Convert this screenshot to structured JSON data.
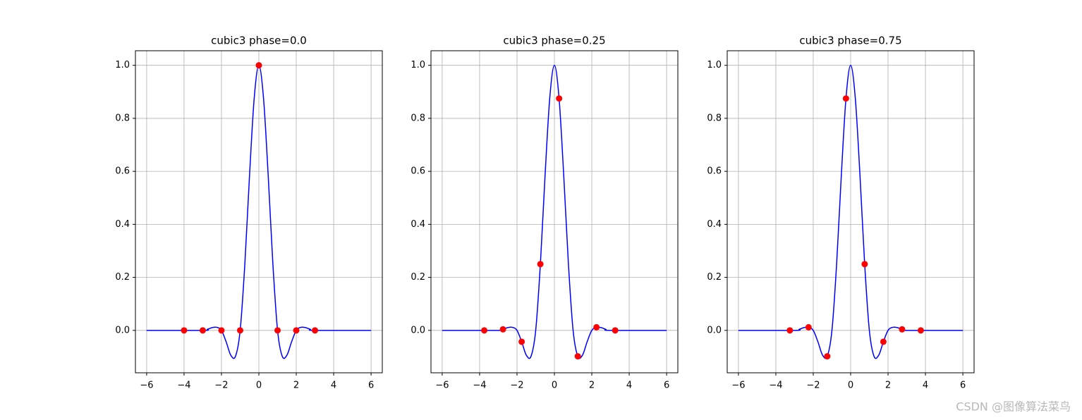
{
  "chart_data": [
    {
      "type": "line",
      "title": "cubic3 phase=0.0",
      "xlim": [
        -6.6,
        6.6
      ],
      "ylim": [
        -0.16,
        1.055
      ],
      "xticks": [
        {
          "value": -6,
          "label": "−6"
        },
        {
          "value": -4,
          "label": "−4"
        },
        {
          "value": -2,
          "label": "−2"
        },
        0,
        2,
        4,
        6
      ],
      "yticks": [
        {
          "value": 0,
          "label": "0.0"
        },
        0.2,
        0.4,
        0.6,
        0.8,
        {
          "value": 1,
          "label": "1.0"
        }
      ],
      "grid": true,
      "series": [
        {
          "type": "line",
          "color": "#0000ff",
          "x": [
            -6,
            -3,
            -2.75,
            -2.5,
            -2.25,
            -2,
            -1.75,
            -1.5,
            -1.25,
            -1,
            -0.75,
            -0.5,
            -0.25,
            0,
            0.25,
            0.5,
            0.75,
            1,
            1.25,
            1.5,
            1.75,
            2,
            2.25,
            2.5,
            2.75,
            3,
            6
          ],
          "values": [
            0,
            0,
            0.0039,
            0.0104,
            0.0117,
            0,
            -0.043,
            -0.0938,
            -0.0977,
            0,
            0.25,
            0.5833,
            0.875,
            1,
            0.875,
            0.5833,
            0.25,
            0,
            -0.0977,
            -0.0938,
            -0.043,
            0,
            0.0117,
            0.0104,
            0.0039,
            0,
            0
          ]
        },
        {
          "type": "scatter",
          "color": "#ff0000",
          "x": [
            -4,
            -3,
            -2,
            -1,
            0,
            1,
            2,
            3
          ],
          "values": [
            0,
            0,
            0,
            0,
            1,
            0,
            0,
            0
          ]
        }
      ]
    },
    {
      "type": "line",
      "title": "cubic3 phase=0.25",
      "xlim": [
        -6.6,
        6.6
      ],
      "ylim": [
        -0.16,
        1.055
      ],
      "xticks": [
        {
          "value": -6,
          "label": "−6"
        },
        {
          "value": -4,
          "label": "−4"
        },
        {
          "value": -2,
          "label": "−2"
        },
        0,
        2,
        4,
        6
      ],
      "yticks": [
        {
          "value": 0,
          "label": "0.0"
        },
        0.2,
        0.4,
        0.6,
        0.8,
        {
          "value": 1,
          "label": "1.0"
        }
      ],
      "grid": true,
      "series": [
        {
          "type": "line",
          "color": "#0000ff",
          "x": [
            -6,
            -3,
            -2.75,
            -2.5,
            -2.25,
            -2,
            -1.75,
            -1.5,
            -1.25,
            -1,
            -0.75,
            -0.5,
            -0.25,
            0,
            0.25,
            0.5,
            0.75,
            1,
            1.25,
            1.5,
            1.75,
            2,
            2.25,
            2.5,
            2.75,
            3,
            6
          ],
          "values": [
            0,
            0,
            0.0039,
            0.0104,
            0.0117,
            0,
            -0.043,
            -0.0938,
            -0.0977,
            0,
            0.25,
            0.5833,
            0.875,
            1,
            0.875,
            0.5833,
            0.25,
            0,
            -0.0977,
            -0.0938,
            -0.043,
            0,
            0.0117,
            0.0104,
            0.0039,
            0,
            0
          ]
        },
        {
          "type": "scatter",
          "color": "#ff0000",
          "x": [
            -3.75,
            -2.75,
            -1.75,
            -0.75,
            0.25,
            1.25,
            2.25,
            3.25
          ],
          "values": [
            0,
            0.0039,
            -0.043,
            0.25,
            0.875,
            -0.0977,
            0.0117,
            0
          ]
        }
      ]
    },
    {
      "type": "line",
      "title": "cubic3 phase=0.75",
      "xlim": [
        -6.6,
        6.6
      ],
      "ylim": [
        -0.16,
        1.055
      ],
      "xticks": [
        {
          "value": -6,
          "label": "−6"
        },
        {
          "value": -4,
          "label": "−4"
        },
        {
          "value": -2,
          "label": "−2"
        },
        0,
        2,
        4,
        6
      ],
      "yticks": [
        {
          "value": 0,
          "label": "0.0"
        },
        0.2,
        0.4,
        0.6,
        0.8,
        {
          "value": 1,
          "label": "1.0"
        }
      ],
      "grid": true,
      "series": [
        {
          "type": "line",
          "color": "#0000ff",
          "x": [
            -6,
            -3,
            -2.75,
            -2.5,
            -2.25,
            -2,
            -1.75,
            -1.5,
            -1.25,
            -1,
            -0.75,
            -0.5,
            -0.25,
            0,
            0.25,
            0.5,
            0.75,
            1,
            1.25,
            1.5,
            1.75,
            2,
            2.25,
            2.5,
            2.75,
            3,
            6
          ],
          "values": [
            0,
            0,
            0.0039,
            0.0104,
            0.0117,
            0,
            -0.043,
            -0.0938,
            -0.0977,
            0,
            0.25,
            0.5833,
            0.875,
            1,
            0.875,
            0.5833,
            0.25,
            0,
            -0.0977,
            -0.0938,
            -0.043,
            0,
            0.0117,
            0.0104,
            0.0039,
            0,
            0
          ]
        },
        {
          "type": "scatter",
          "color": "#ff0000",
          "x": [
            -3.25,
            -2.25,
            -1.25,
            -0.25,
            0.75,
            1.75,
            2.75,
            3.75
          ],
          "values": [
            0,
            0.0117,
            -0.0977,
            0.875,
            0.25,
            -0.043,
            0.0039,
            0
          ]
        }
      ]
    }
  ],
  "watermark": "CSDN @图像算法菜鸟"
}
